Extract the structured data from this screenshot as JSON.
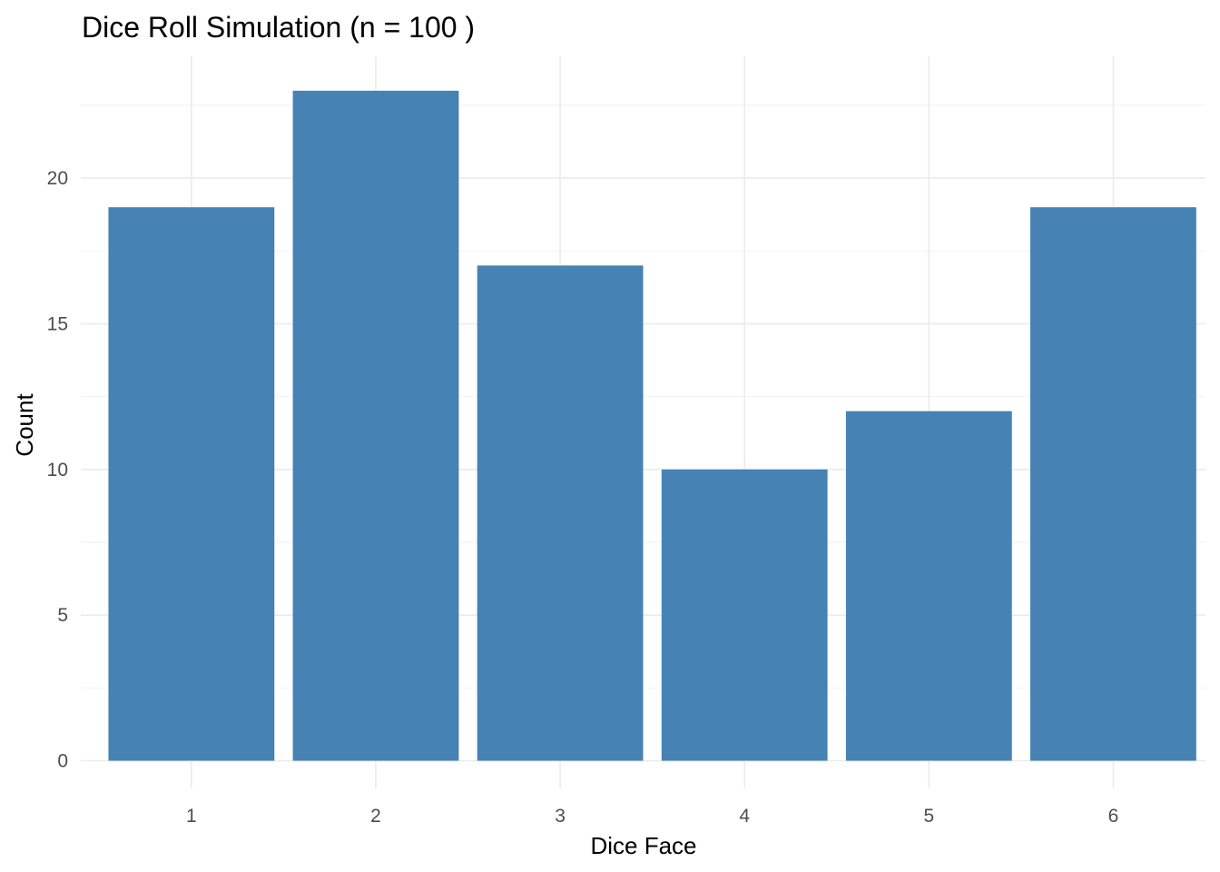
{
  "chart_data": {
    "type": "bar",
    "title": "Dice Roll Simulation (n = 100 )",
    "xlabel": "Dice Face",
    "ylabel": "Count",
    "categories": [
      "1",
      "2",
      "3",
      "4",
      "5",
      "6"
    ],
    "values": [
      19,
      23,
      17,
      10,
      12,
      19
    ],
    "ylim": [
      0,
      24
    ],
    "y_ticks": [
      0,
      5,
      10,
      15,
      20
    ],
    "bar_color": "#4682B4",
    "grid": true,
    "legend": "none"
  }
}
